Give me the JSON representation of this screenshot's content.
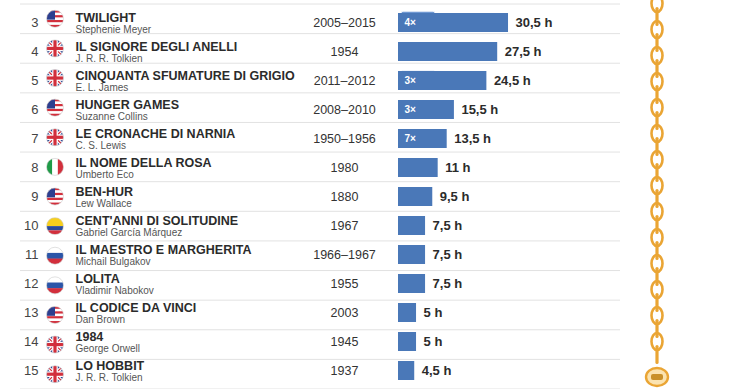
{
  "chart_data": {
    "type": "bar",
    "orientation": "horizontal",
    "ranks": [
      3,
      4,
      5,
      6,
      7,
      8,
      9,
      10,
      11,
      12,
      13,
      14,
      15
    ],
    "categories": [
      "TWILIGHT",
      "IL SIGNORE DEGLI ANELLI",
      "CINQUANTA SFUMATURE DI GRIGIO",
      "HUNGER GAMES",
      "LE CRONACHE DI NARNIA",
      "IL NOME DELLA ROSA",
      "BEN-HUR",
      "CENT'ANNI DI SOLITUDINE",
      "IL MAESTRO E MARGHERITA",
      "LOLITA",
      "IL CODICE DA VINCI",
      "1984",
      "LO HOBBIT"
    ],
    "authors": [
      "Stephenie Meyer",
      "J. R. R. Tolkien",
      "E. L. James",
      "Suzanne Collins",
      "C. S. Lewis",
      "Umberto Eco",
      "Lew Wallace",
      "Gabriel García Márquez",
      "Michail Bulgakov",
      "Vladimir Nabokov",
      "Dan Brown",
      "George Orwell",
      "J. R. R. Tolkien"
    ],
    "years": [
      "2005–2015",
      "1954",
      "2011–2012",
      "2008–2010",
      "1950–1956",
      "1980",
      "1880",
      "1967",
      "1966–1967",
      "1955",
      "2003",
      "1945",
      "1937"
    ],
    "badges": [
      "4×",
      null,
      "3×",
      "3×",
      "7×",
      null,
      null,
      null,
      null,
      null,
      null,
      null,
      null
    ],
    "values": [
      30.5,
      27.5,
      24.5,
      15.5,
      13.5,
      11,
      9.5,
      7.5,
      7.5,
      7.5,
      5,
      5,
      4.5
    ],
    "value_labels": [
      "30,5 h",
      "27,5 h",
      "24,5 h",
      "15,5 h",
      "13,5 h",
      "11 h",
      "9,5 h",
      "7,5 h",
      "7,5 h",
      "7,5 h",
      "5 h",
      "5 h",
      "4,5 h"
    ],
    "data_labels": true,
    "color": "#4a78b8",
    "xlim": [
      0,
      56
    ],
    "tick_labels": false
  }
}
